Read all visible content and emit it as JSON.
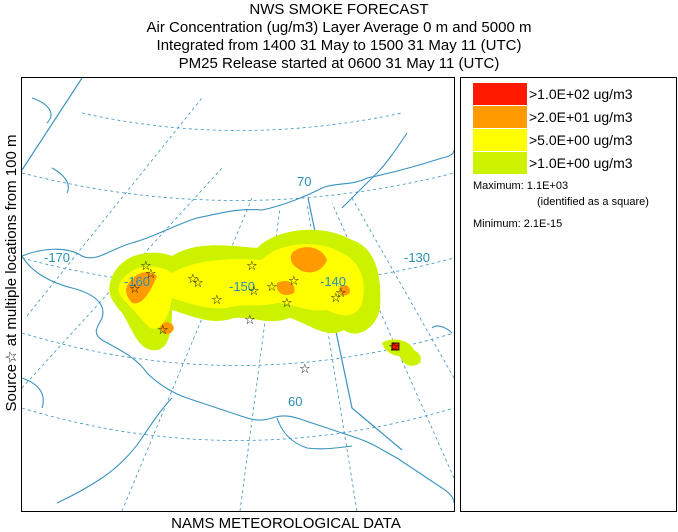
{
  "header": {
    "title": "NWS SMOKE FORECAST",
    "line2": "Air Concentration (ug/m3) Layer Average    0 m and  5000 m",
    "line3": "Integrated from 1400 31 May to 1500 31 May 11 (UTC)",
    "line4": "PM25 Release started at 0600 31 May 11 (UTC)"
  },
  "side_label": "Source☆ at multiple locations from 100 m",
  "bottom_label": "NAMS METEOROLOGICAL DATA",
  "map": {
    "lat_labels": [
      "70",
      "60"
    ],
    "lon_labels": [
      "-170",
      "-160",
      "-150",
      "-140",
      "-130"
    ]
  },
  "legend": {
    "items": [
      {
        "label": ">1.0E+02 ug/m3",
        "color": "#ff1a00"
      },
      {
        "label": ">2.0E+01 ug/m3",
        "color": "#ff9a00"
      },
      {
        "label": ">5.0E+00 ug/m3",
        "color": "#ffff00"
      },
      {
        "label": ">1.0E+00 ug/m3",
        "color": "#ccf200"
      }
    ],
    "maximum": "Maximum: 1.1E+03",
    "maximum_note": "(identified as a square)",
    "minimum": "Minimum: 2.1E-15"
  },
  "colors": {
    "coast": "#3a93bf",
    "grid": "#3a93bf",
    "smoke_outer": "#ccf200",
    "smoke_mid": "#ffff00",
    "smoke_high": "#ff9a00",
    "smoke_max": "#ff1a00"
  }
}
